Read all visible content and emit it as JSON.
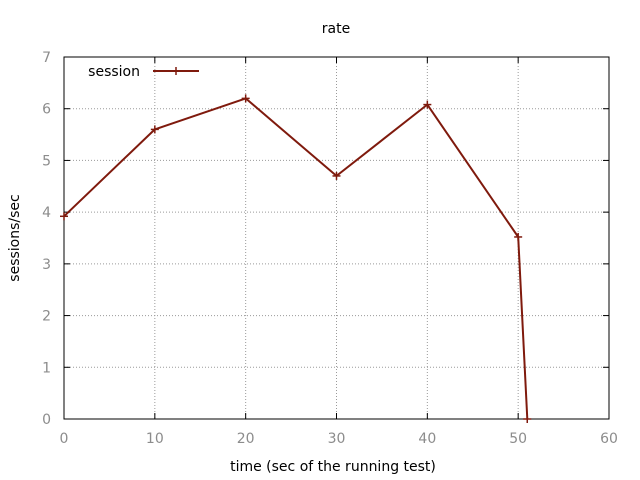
{
  "chart_data": {
    "type": "line",
    "title": "rate",
    "xlabel": "time (sec of the running test)",
    "ylabel": "sessions/sec",
    "xlim": [
      0,
      60
    ],
    "ylim": [
      0,
      7
    ],
    "xticks": [
      0,
      10,
      20,
      30,
      40,
      50,
      60
    ],
    "yticks": [
      0,
      1,
      2,
      3,
      4,
      5,
      6,
      7
    ],
    "grid": true,
    "legend_position": "top-left",
    "series": [
      {
        "name": "session",
        "color": "#7f1a0d",
        "marker": "plus",
        "x": [
          0,
          10,
          20,
          30,
          40,
          50,
          51
        ],
        "y": [
          3.92,
          5.6,
          6.2,
          4.7,
          6.08,
          3.52,
          0
        ]
      }
    ]
  }
}
